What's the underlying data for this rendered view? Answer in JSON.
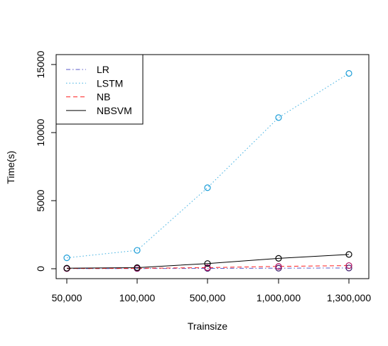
{
  "chart_data": {
    "type": "line",
    "title": "",
    "xlabel": "Trainsize",
    "ylabel": "Time(s)",
    "categories": [
      "50,000",
      "100,000",
      "500,000",
      "1,000,000",
      "1,300,000"
    ],
    "ylim": [
      -500,
      15800
    ],
    "yticks": [
      0,
      5000,
      10000,
      15000
    ],
    "grid": false,
    "legend_position": "top-left",
    "series": [
      {
        "name": "LR",
        "color": "#5a5ac8",
        "linestyle": "dashdot",
        "point_color": "#3a1a6b",
        "values": [
          10,
          15,
          25,
          40,
          55
        ]
      },
      {
        "name": "LSTM",
        "color": "#3aaee0",
        "linestyle": "dotted",
        "point_color": "#1e9ed8",
        "values": [
          800,
          1350,
          5950,
          11100,
          14350
        ]
      },
      {
        "name": "NB",
        "color": "#ff2020",
        "linestyle": "dashed",
        "point_color": "#b01060",
        "values": [
          15,
          30,
          80,
          170,
          230
        ]
      },
      {
        "name": "NBSVM",
        "color": "#000000",
        "linestyle": "solid",
        "point_color": "#000000",
        "values": [
          40,
          80,
          380,
          760,
          1050
        ]
      }
    ]
  }
}
